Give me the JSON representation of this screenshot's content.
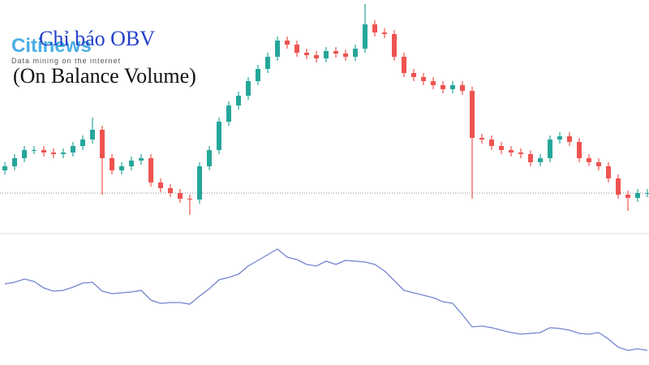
{
  "chart_data": [
    {
      "type": "candlestick",
      "title": "Chỉ báo OBV",
      "subtitle": "(On Balance Volume)",
      "up_color": "#26a69a",
      "down_color": "#ef5350",
      "ylim": [
        0,
        290
      ],
      "price_line": 52,
      "open": [
        80,
        85,
        95,
        105,
        105,
        102,
        100,
        102,
        110,
        118,
        130,
        95,
        80,
        85,
        92,
        95,
        65,
        58,
        52,
        45,
        44,
        85,
        105,
        140,
        160,
        172,
        190,
        205,
        220,
        240,
        235,
        225,
        222,
        218,
        227,
        224,
        220,
        230,
        260,
        250,
        248,
        220,
        200,
        195,
        190,
        185,
        180,
        185,
        178,
        120,
        118,
        110,
        105,
        102,
        100,
        90,
        95,
        118,
        122,
        115,
        95,
        90,
        85,
        70,
        50,
        46,
        52
      ],
      "high": [
        90,
        100,
        110,
        110,
        110,
        107,
        107,
        115,
        123,
        145,
        135,
        100,
        90,
        97,
        100,
        100,
        70,
        63,
        57,
        50,
        90,
        110,
        145,
        165,
        177,
        195,
        210,
        225,
        245,
        245,
        240,
        230,
        227,
        232,
        232,
        229,
        235,
        285,
        265,
        255,
        253,
        225,
        205,
        200,
        195,
        190,
        190,
        190,
        183,
        125,
        123,
        115,
        110,
        107,
        105,
        100,
        123,
        127,
        127,
        120,
        100,
        95,
        90,
        75,
        55,
        57,
        57
      ],
      "low": [
        75,
        80,
        90,
        100,
        97,
        95,
        95,
        97,
        105,
        113,
        50,
        75,
        75,
        80,
        87,
        60,
        53,
        47,
        40,
        25,
        39,
        80,
        100,
        135,
        155,
        167,
        185,
        200,
        215,
        230,
        220,
        217,
        213,
        213,
        219,
        215,
        215,
        225,
        245,
        243,
        215,
        195,
        190,
        185,
        180,
        175,
        175,
        173,
        45,
        113,
        105,
        100,
        97,
        95,
        85,
        85,
        90,
        113,
        110,
        90,
        85,
        80,
        65,
        45,
        30,
        41,
        47
      ],
      "close": [
        85,
        95,
        105,
        105,
        102,
        100,
        102,
        110,
        118,
        130,
        95,
        80,
        85,
        92,
        95,
        65,
        58,
        52,
        45,
        44,
        85,
        105,
        140,
        160,
        172,
        190,
        205,
        220,
        240,
        235,
        225,
        222,
        218,
        227,
        224,
        220,
        230,
        260,
        250,
        248,
        220,
        200,
        195,
        190,
        185,
        180,
        185,
        178,
        120,
        118,
        110,
        105,
        102,
        100,
        90,
        95,
        118,
        122,
        115,
        95,
        90,
        85,
        70,
        50,
        46,
        52,
        52
      ]
    },
    {
      "type": "line",
      "ylim": [
        0,
        155
      ],
      "series": [
        {
          "color": "#7384cf",
          "values": [
            100,
            102,
            106,
            103,
            95,
            91,
            92,
            96,
            101,
            102,
            91,
            88,
            89,
            90,
            92,
            80,
            76,
            77,
            77,
            75,
            85,
            94,
            105,
            108,
            112,
            122,
            129,
            136,
            143,
            133,
            130,
            124,
            122,
            128,
            124,
            129,
            128,
            127,
            124,
            116,
            104,
            92,
            89,
            86,
            83,
            78,
            76,
            62,
            47,
            48,
            46,
            43,
            40,
            38,
            39,
            40,
            46,
            45,
            43,
            39,
            38,
            40,
            32,
            22,
            18,
            20,
            18
          ]
        }
      ]
    }
  ],
  "watermark": {
    "brand": "Citinews",
    "tagline": "Data mining on the internet"
  }
}
